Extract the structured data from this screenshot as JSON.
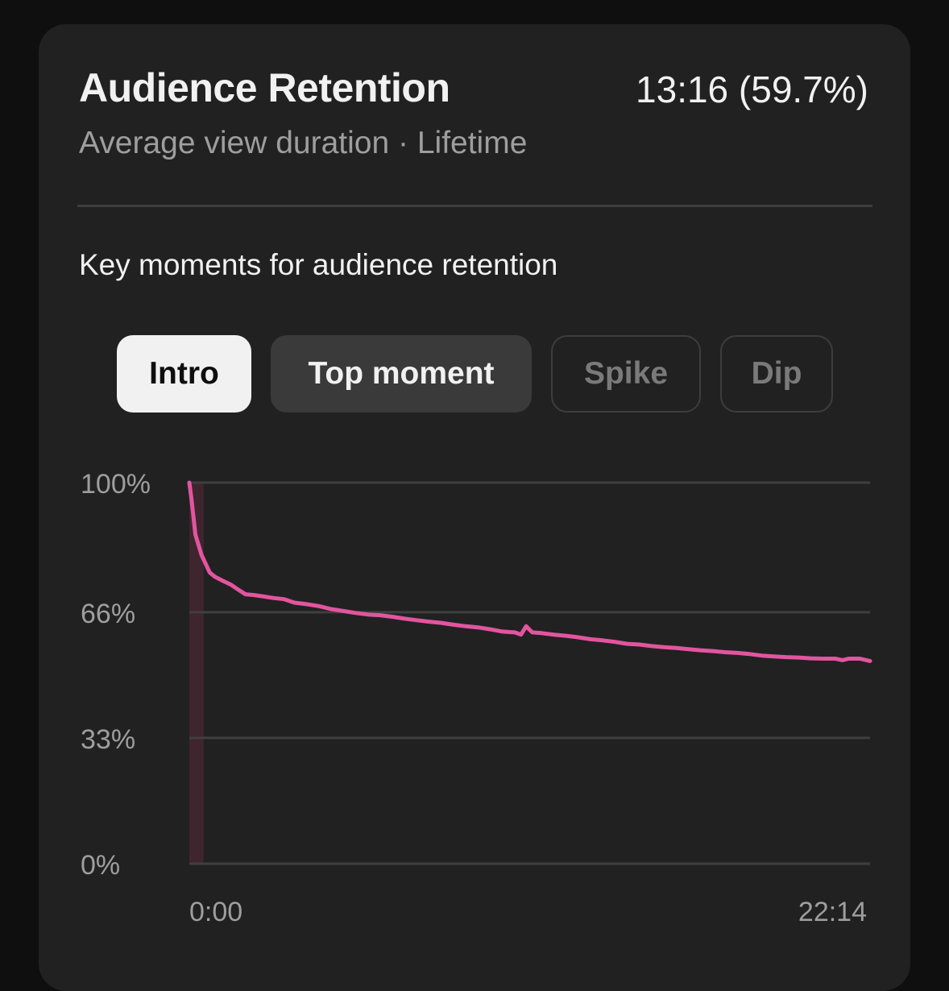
{
  "header": {
    "title": "Audience Retention",
    "value": "13:16 (59.7%)",
    "subtitle": "Average view duration · Lifetime"
  },
  "key_moments": {
    "title": "Key moments for audience retention",
    "chips": [
      {
        "label": "Intro",
        "state": "active"
      },
      {
        "label": "Top moment",
        "state": "secondary"
      },
      {
        "label": "Spike",
        "state": "disabled"
      },
      {
        "label": "Dip",
        "state": "disabled"
      }
    ]
  },
  "colors": {
    "line": "#e2559f",
    "highlight": "#5a2a3a"
  },
  "chart_data": {
    "type": "line",
    "x_start_label": "0:00",
    "x_end_label": "22:14",
    "xlim": [
      0,
      1334
    ],
    "ylim": [
      0,
      100
    ],
    "y_ticks": [
      {
        "value": 100,
        "label": "100%"
      },
      {
        "value": 66,
        "label": "66%"
      },
      {
        "value": 33,
        "label": "33%"
      },
      {
        "value": 0,
        "label": "0%"
      }
    ],
    "grid": true,
    "highlight_range": [
      0,
      28
    ],
    "series": [
      {
        "x": [
          0,
          4,
          12,
          24,
          40,
          50,
          66,
          82,
          96,
          110,
          126,
          146,
          166,
          186,
          206,
          230,
          254,
          278,
          302,
          326,
          350,
          374,
          398,
          422,
          446,
          470,
          494,
          518,
          542,
          566,
          590,
          614,
          638,
          650,
          660,
          672,
          690,
          714,
          738,
          762,
          786,
          810,
          834,
          858,
          882,
          906,
          930,
          954,
          978,
          1002,
          1026,
          1050,
          1074,
          1098,
          1122,
          1146,
          1170,
          1194,
          1218,
          1242,
          1266,
          1280,
          1292,
          1314,
          1334
        ],
        "y": [
          100,
          96,
          86.3,
          81,
          76.4,
          75.3,
          74.2,
          73.2,
          71.9,
          70.7,
          70.5,
          70.1,
          69.7,
          69.4,
          68.5,
          68.1,
          67.6,
          66.8,
          66.3,
          65.8,
          65.4,
          65.2,
          64.8,
          64.3,
          63.9,
          63.5,
          63.2,
          62.7,
          62.3,
          62.0,
          61.5,
          60.9,
          60.7,
          60.1,
          62.3,
          60.7,
          60.5,
          60.1,
          59.8,
          59.4,
          58.9,
          58.6,
          58.2,
          57.7,
          57.5,
          57.1,
          56.8,
          56.6,
          56.3,
          56.0,
          55.8,
          55.5,
          55.3,
          55.0,
          54.6,
          54.4,
          54.2,
          54.1,
          53.9,
          53.8,
          53.8,
          53.4,
          53.8,
          53.8,
          53.2
        ]
      }
    ]
  }
}
